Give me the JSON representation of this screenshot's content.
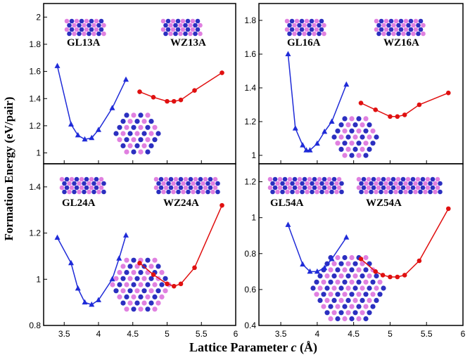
{
  "xlabel": [
    "Lattice Parameter ",
    "c",
    " (Å)"
  ],
  "ylabel": "Formation Energy (eV/pair)",
  "chart_data": [
    {
      "type": "line",
      "annotations": [
        "GL13A",
        "WZ13A"
      ],
      "xlim": [
        3.2,
        6.0
      ],
      "ylim": [
        0.92,
        2.1
      ],
      "yticks": [
        1.0,
        1.2,
        1.4,
        1.6,
        1.8,
        2.0
      ],
      "xticks": [
        3.5,
        4.0,
        4.5,
        5.0,
        5.5,
        6.0
      ],
      "series": [
        {
          "color": "#1f2bd8",
          "marker": "triangle",
          "x": [
            3.4,
            3.6,
            3.7,
            3.8,
            3.9,
            4.0,
            4.2,
            4.4
          ],
          "values": [
            1.64,
            1.21,
            1.13,
            1.1,
            1.11,
            1.17,
            1.33,
            1.54
          ]
        },
        {
          "color": "#e01010",
          "marker": "circle",
          "x": [
            4.6,
            4.8,
            5.0,
            5.1,
            5.2,
            5.4,
            5.8
          ],
          "values": [
            1.45,
            1.41,
            1.38,
            1.38,
            1.39,
            1.46,
            1.59
          ]
        }
      ]
    },
    {
      "type": "line",
      "annotations": [
        "GL16A",
        "WZ16A"
      ],
      "xlim": [
        3.2,
        6.0
      ],
      "ylim": [
        0.95,
        1.9
      ],
      "yticks": [
        1.0,
        1.2,
        1.4,
        1.6,
        1.8
      ],
      "xticks": [
        3.5,
        4.0,
        4.5,
        5.0,
        5.5,
        6.0
      ],
      "series": [
        {
          "color": "#1f2bd8",
          "marker": "triangle",
          "x": [
            3.6,
            3.7,
            3.8,
            3.85,
            3.9,
            4.0,
            4.1,
            4.2,
            4.4
          ],
          "values": [
            1.6,
            1.16,
            1.06,
            1.03,
            1.03,
            1.07,
            1.14,
            1.2,
            1.42
          ]
        },
        {
          "color": "#e01010",
          "marker": "circle",
          "x": [
            4.6,
            4.8,
            5.0,
            5.1,
            5.2,
            5.4,
            5.8
          ],
          "values": [
            1.31,
            1.27,
            1.23,
            1.23,
            1.24,
            1.3,
            1.37
          ]
        }
      ]
    },
    {
      "type": "line",
      "annotations": [
        "GL24A",
        "WZ24A"
      ],
      "xlim": [
        3.2,
        6.0
      ],
      "ylim": [
        0.8,
        1.5
      ],
      "yticks": [
        0.8,
        1.0,
        1.2,
        1.4
      ],
      "xticks": [
        3.5,
        4.0,
        4.5,
        5.0,
        5.5,
        6.0
      ],
      "series": [
        {
          "color": "#1f2bd8",
          "marker": "triangle",
          "x": [
            3.4,
            3.6,
            3.7,
            3.8,
            3.9,
            4.0,
            4.2,
            4.3,
            4.4
          ],
          "values": [
            1.18,
            1.07,
            0.96,
            0.9,
            0.89,
            0.91,
            1.0,
            1.09,
            1.19
          ]
        },
        {
          "color": "#e01010",
          "marker": "circle",
          "x": [
            4.6,
            4.8,
            5.0,
            5.1,
            5.2,
            5.4,
            5.8
          ],
          "values": [
            1.07,
            1.02,
            0.98,
            0.97,
            0.98,
            1.05,
            1.32
          ]
        }
      ]
    },
    {
      "type": "line",
      "annotations": [
        "GL54A",
        "WZ54A"
      ],
      "xlim": [
        3.2,
        6.0
      ],
      "ylim": [
        0.4,
        1.3
      ],
      "yticks": [
        0.4,
        0.6,
        0.8,
        1.0,
        1.2
      ],
      "xticks": [
        3.5,
        4.0,
        4.5,
        5.0,
        5.5,
        6.0
      ],
      "series": [
        {
          "color": "#1f2bd8",
          "marker": "triangle",
          "x": [
            3.6,
            3.8,
            3.9,
            4.0,
            4.1,
            4.2,
            4.4
          ],
          "values": [
            0.96,
            0.74,
            0.7,
            0.7,
            0.72,
            0.77,
            0.89
          ]
        },
        {
          "color": "#e01010",
          "marker": "circle",
          "x": [
            4.6,
            4.8,
            4.9,
            5.0,
            5.1,
            5.2,
            5.4,
            5.8
          ],
          "values": [
            0.77,
            0.7,
            0.68,
            0.67,
            0.67,
            0.68,
            0.76,
            1.05
          ]
        }
      ]
    }
  ]
}
